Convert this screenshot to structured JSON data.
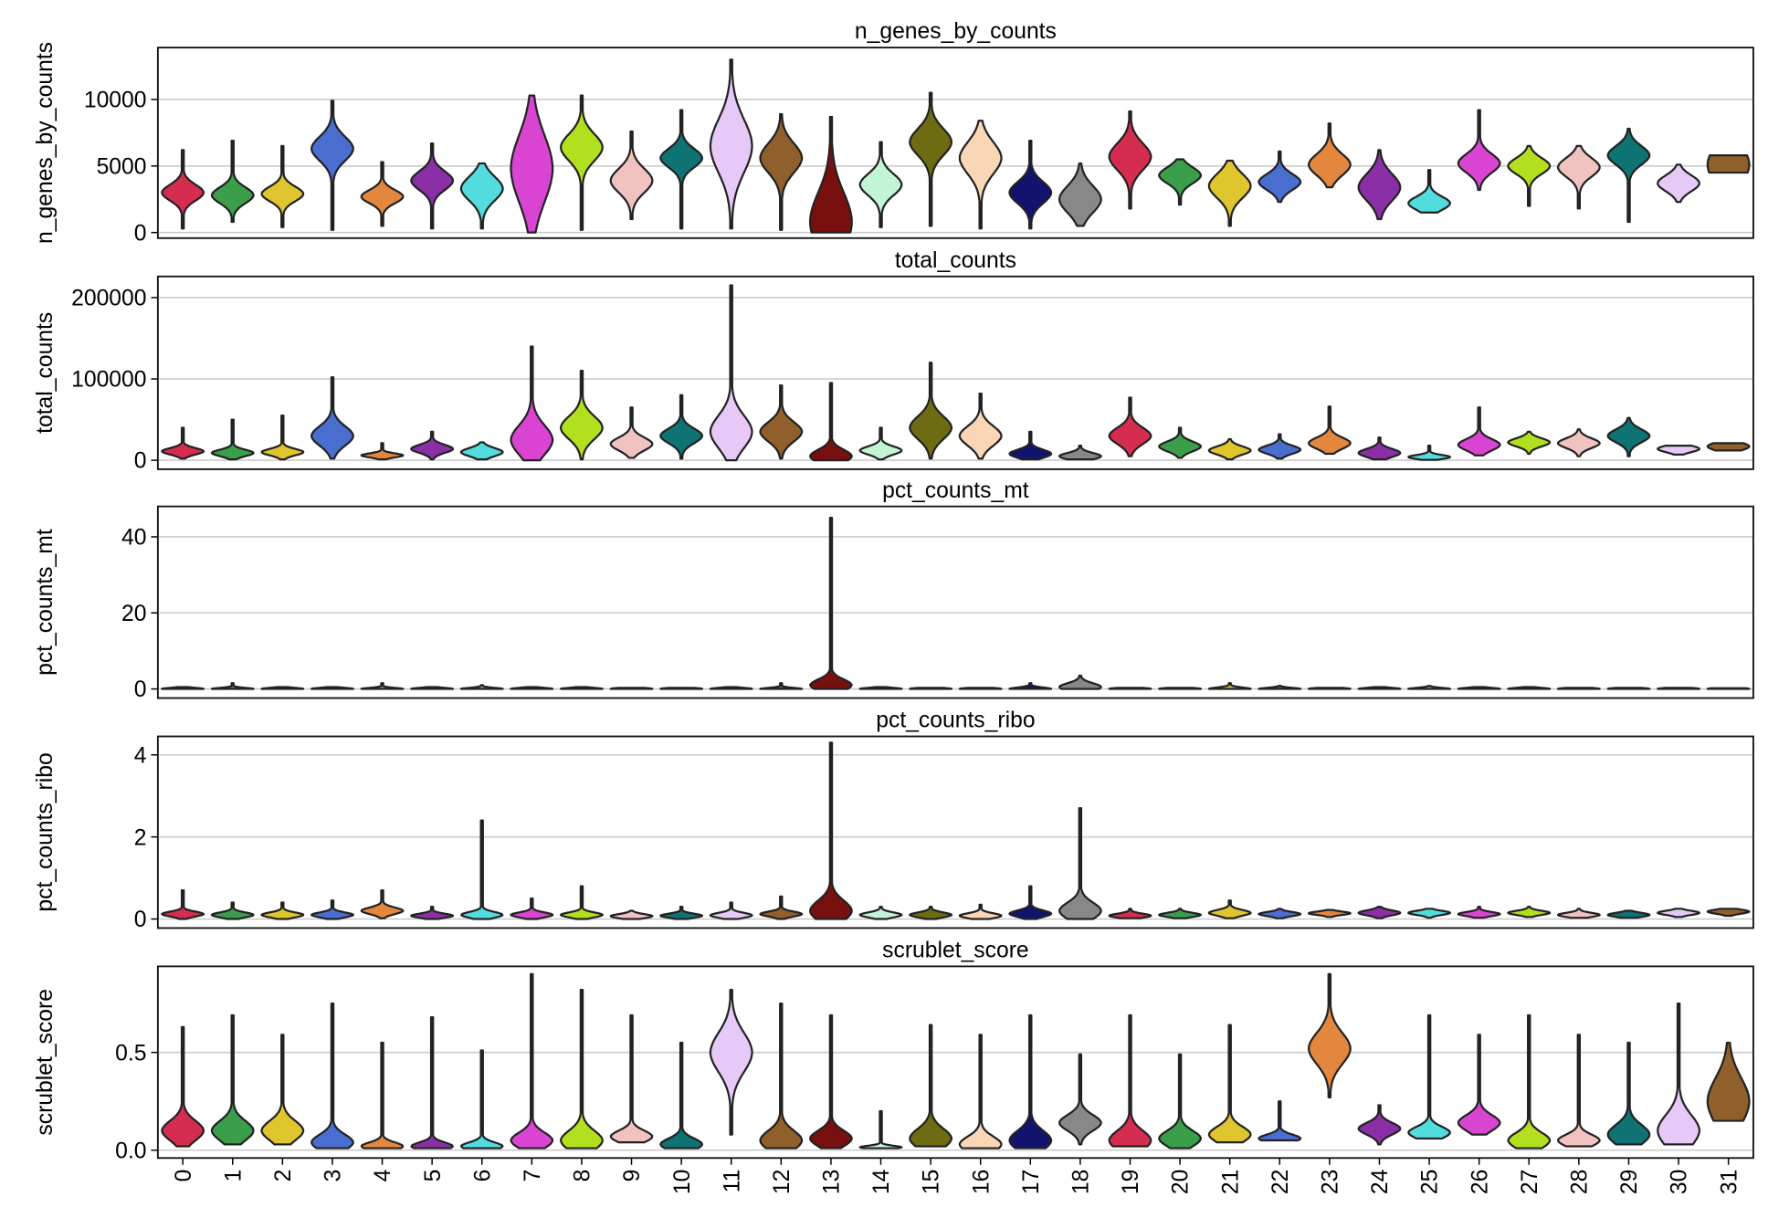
{
  "colors": [
    "#d42d50",
    "#3a9e4a",
    "#e0c62e",
    "#4a6dd0",
    "#e3873f",
    "#8a2fa6",
    "#52dcdd",
    "#d945d2",
    "#b3e01e",
    "#f0c3c0",
    "#0e7372",
    "#e6c9f7",
    "#8f5f2c",
    "#791010",
    "#c2f5d5",
    "#6d6c12",
    "#f8d6b6",
    "#11136e",
    "#888888",
    "#d42d50",
    "#3a9e4a",
    "#e0c62e",
    "#4a6dd0",
    "#e3873f",
    "#8a2fa6",
    "#52dcdd",
    "#d945d2",
    "#b3e01e",
    "#f0c3c0",
    "#0e7372",
    "#e6c9f7",
    "#8f5f2c"
  ],
  "categories": [
    "0",
    "1",
    "2",
    "3",
    "4",
    "5",
    "6",
    "7",
    "8",
    "9",
    "10",
    "11",
    "12",
    "13",
    "14",
    "15",
    "16",
    "17",
    "18",
    "19",
    "20",
    "21",
    "22",
    "23",
    "24",
    "25",
    "26",
    "27",
    "28",
    "29",
    "30",
    "31"
  ],
  "chart_data": [
    {
      "type": "violin",
      "title": "n_genes_by_counts",
      "ylabel": "n_genes_by_counts",
      "grid": true,
      "yticks": [
        0,
        5000,
        10000
      ],
      "ytick_labels": [
        "0",
        "5000",
        "10000"
      ],
      "ylim": [
        -420,
        13900
      ],
      "stats_fields": [
        "min",
        "max",
        "mode",
        "spread"
      ],
      "stats": [
        [
          300,
          6200,
          3000,
          600
        ],
        [
          800,
          6900,
          2800,
          600
        ],
        [
          400,
          6500,
          2900,
          550
        ],
        [
          200,
          9900,
          6300,
          900
        ],
        [
          500,
          5300,
          2700,
          500
        ],
        [
          300,
          6700,
          3900,
          700
        ],
        [
          300,
          5200,
          3300,
          900
        ],
        [
          0,
          10300,
          4800,
          2500
        ],
        [
          200,
          10300,
          6400,
          1000
        ],
        [
          1000,
          7600,
          3900,
          900
        ],
        [
          300,
          9200,
          5600,
          700
        ],
        [
          300,
          13000,
          6500,
          2000
        ],
        [
          200,
          8900,
          5600,
          1100
        ],
        [
          0,
          8700,
          800,
          2200
        ],
        [
          400,
          6800,
          3600,
          800
        ],
        [
          500,
          10500,
          6800,
          1000
        ],
        [
          300,
          8400,
          5600,
          1200
        ],
        [
          300,
          6900,
          3000,
          800
        ],
        [
          500,
          5200,
          2500,
          1000
        ],
        [
          1800,
          9100,
          5700,
          1000
        ],
        [
          2100,
          5500,
          4300,
          600
        ],
        [
          500,
          5400,
          3500,
          900
        ],
        [
          2300,
          6100,
          3800,
          600
        ],
        [
          3400,
          8200,
          5100,
          800
        ],
        [
          1000,
          6200,
          3400,
          1000
        ],
        [
          1500,
          4700,
          2200,
          500
        ],
        [
          3200,
          9200,
          5200,
          700
        ],
        [
          2000,
          6500,
          5000,
          600
        ],
        [
          1800,
          6500,
          4900,
          700
        ],
        [
          800,
          7800,
          5800,
          700
        ],
        [
          2300,
          5100,
          3700,
          600
        ],
        [
          4500,
          5800,
          5100,
          1500
        ]
      ]
    },
    {
      "type": "violin",
      "title": "total_counts",
      "ylabel": "total_counts",
      "grid": true,
      "yticks": [
        0,
        100000,
        200000
      ],
      "ytick_labels": [
        "0",
        "100000",
        "200000"
      ],
      "ylim": [
        -11000,
        226000
      ],
      "stats_fields": [
        "min",
        "max",
        "mode",
        "spread"
      ],
      "stats": [
        [
          2000,
          40000,
          11000,
          4000
        ],
        [
          1000,
          50000,
          9000,
          4000
        ],
        [
          1000,
          55000,
          10000,
          4000
        ],
        [
          2000,
          102000,
          30000,
          12000
        ],
        [
          1000,
          21000,
          6000,
          2500
        ],
        [
          1000,
          35000,
          14000,
          5000
        ],
        [
          1000,
          22000,
          10000,
          5000
        ],
        [
          0,
          140000,
          25000,
          18000
        ],
        [
          1000,
          110000,
          40000,
          14000
        ],
        [
          3000,
          65000,
          20000,
          8000
        ],
        [
          2000,
          80000,
          30000,
          9000
        ],
        [
          0,
          215000,
          35000,
          20000
        ],
        [
          2000,
          92000,
          35000,
          12000
        ],
        [
          0,
          95000,
          5000,
          8000
        ],
        [
          1000,
          40000,
          12000,
          5000
        ],
        [
          2000,
          120000,
          40000,
          14000
        ],
        [
          2000,
          82000,
          30000,
          12000
        ],
        [
          1000,
          35000,
          8000,
          5000
        ],
        [
          1000,
          18000,
          5000,
          4000
        ],
        [
          5000,
          77000,
          30000,
          10000
        ],
        [
          3000,
          40000,
          17000,
          6000
        ],
        [
          1000,
          26000,
          12000,
          5000
        ],
        [
          2000,
          32000,
          13000,
          5000
        ],
        [
          8000,
          66000,
          21000,
          7000
        ],
        [
          1000,
          28000,
          9000,
          5000
        ],
        [
          500,
          18000,
          4000,
          2500
        ],
        [
          6000,
          65000,
          19000,
          7000
        ],
        [
          8000,
          35000,
          22000,
          5000
        ],
        [
          5000,
          38000,
          21000,
          6000
        ],
        [
          5000,
          52000,
          30000,
          8000
        ],
        [
          7000,
          18000,
          14000,
          4000
        ],
        [
          12000,
          21000,
          17000,
          5000
        ]
      ]
    },
    {
      "type": "violin",
      "title": "pct_counts_mt",
      "ylabel": "pct_counts_mt",
      "grid": true,
      "yticks": [
        0,
        20,
        40
      ],
      "ytick_labels": [
        "0",
        "20",
        "40"
      ],
      "ylim": [
        -2.4,
        48
      ],
      "stats_fields": [
        "min",
        "max",
        "mode",
        "spread"
      ],
      "stats": [
        [
          0,
          0.5,
          0,
          0.3
        ],
        [
          0,
          1.5,
          0,
          0.3
        ],
        [
          0,
          0.5,
          0,
          0.3
        ],
        [
          0,
          0.5,
          0,
          0.3
        ],
        [
          0,
          1.5,
          0,
          0.3
        ],
        [
          0,
          0.5,
          0,
          0.3
        ],
        [
          0,
          1,
          0,
          0.3
        ],
        [
          0,
          0.5,
          0,
          0.3
        ],
        [
          0,
          0.5,
          0,
          0.3
        ],
        [
          0,
          0.3,
          0,
          0.3
        ],
        [
          0,
          0.3,
          0,
          0.3
        ],
        [
          0,
          0.5,
          0,
          0.3
        ],
        [
          0,
          1.5,
          0,
          0.3
        ],
        [
          0,
          45,
          1,
          1.5
        ],
        [
          0,
          0.5,
          0,
          0.3
        ],
        [
          0,
          0.3,
          0,
          0.3
        ],
        [
          0,
          0.3,
          0,
          0.3
        ],
        [
          0,
          1.5,
          0,
          0.4
        ],
        [
          0,
          3.5,
          0.5,
          1
        ],
        [
          0,
          0.3,
          0,
          0.3
        ],
        [
          0,
          0.3,
          0,
          0.3
        ],
        [
          0,
          1.5,
          0,
          0.4
        ],
        [
          0,
          0.8,
          0,
          0.3
        ],
        [
          0,
          0.3,
          0,
          0.3
        ],
        [
          0,
          0.5,
          0,
          0.3
        ],
        [
          0,
          0.8,
          0,
          0.3
        ],
        [
          0,
          0.5,
          0,
          0.3
        ],
        [
          0,
          0.5,
          0,
          0.3
        ],
        [
          0,
          0.3,
          0,
          0.3
        ],
        [
          0,
          0.3,
          0,
          0.3
        ],
        [
          0,
          0.3,
          0,
          0.3
        ],
        [
          0,
          0.2,
          0,
          0.3
        ]
      ]
    },
    {
      "type": "violin",
      "title": "pct_counts_ribo",
      "ylabel": "pct_counts_ribo",
      "grid": true,
      "yticks": [
        0,
        2,
        4
      ],
      "ytick_labels": [
        "0",
        "2",
        "4"
      ],
      "ylim": [
        -0.22,
        4.45
      ],
      "stats_fields": [
        "min",
        "max",
        "mode",
        "spread"
      ],
      "stats": [
        [
          0,
          0.7,
          0.12,
          0.06
        ],
        [
          0,
          0.4,
          0.1,
          0.06
        ],
        [
          0,
          0.4,
          0.1,
          0.06
        ],
        [
          0,
          0.45,
          0.1,
          0.06
        ],
        [
          0.02,
          0.7,
          0.2,
          0.08
        ],
        [
          0,
          0.3,
          0.08,
          0.05
        ],
        [
          0,
          2.4,
          0.1,
          0.07
        ],
        [
          0,
          0.5,
          0.1,
          0.06
        ],
        [
          0,
          0.8,
          0.1,
          0.06
        ],
        [
          0,
          0.2,
          0.07,
          0.05
        ],
        [
          0,
          0.3,
          0.08,
          0.05
        ],
        [
          0,
          0.4,
          0.09,
          0.06
        ],
        [
          0,
          0.55,
          0.12,
          0.06
        ],
        [
          0,
          4.3,
          0.2,
          0.25
        ],
        [
          0,
          0.3,
          0.1,
          0.06
        ],
        [
          0,
          0.3,
          0.1,
          0.06
        ],
        [
          0,
          0.35,
          0.08,
          0.06
        ],
        [
          0,
          0.8,
          0.13,
          0.08
        ],
        [
          0,
          2.7,
          0.2,
          0.2
        ],
        [
          0.02,
          0.25,
          0.08,
          0.05
        ],
        [
          0.02,
          0.25,
          0.1,
          0.05
        ],
        [
          0.02,
          0.45,
          0.15,
          0.07
        ],
        [
          0.02,
          0.25,
          0.12,
          0.05
        ],
        [
          0.05,
          0.22,
          0.14,
          0.04
        ],
        [
          0.02,
          0.3,
          0.15,
          0.06
        ],
        [
          0.03,
          0.25,
          0.15,
          0.05
        ],
        [
          0.03,
          0.3,
          0.12,
          0.05
        ],
        [
          0.05,
          0.3,
          0.15,
          0.05
        ],
        [
          0.03,
          0.25,
          0.1,
          0.05
        ],
        [
          0.03,
          0.2,
          0.1,
          0.05
        ],
        [
          0.05,
          0.25,
          0.15,
          0.05
        ],
        [
          0.08,
          0.25,
          0.18,
          0.05
        ]
      ]
    },
    {
      "type": "violin",
      "title": "scrublet_score",
      "ylabel": "scrublet_score",
      "grid": true,
      "yticks": [
        0,
        0.5
      ],
      "ytick_labels": [
        "0.0",
        "0.5"
      ],
      "ylim": [
        -0.04,
        0.94
      ],
      "stats_fields": [
        "min",
        "max",
        "mode",
        "spread"
      ],
      "stats": [
        [
          0.02,
          0.63,
          0.1,
          0.05
        ],
        [
          0.03,
          0.69,
          0.1,
          0.05
        ],
        [
          0.03,
          0.59,
          0.1,
          0.05
        ],
        [
          0.01,
          0.75,
          0.04,
          0.04
        ],
        [
          0.01,
          0.55,
          0.02,
          0.02
        ],
        [
          0.01,
          0.68,
          0.02,
          0.02
        ],
        [
          0.01,
          0.51,
          0.02,
          0.02
        ],
        [
          0.01,
          0.9,
          0.05,
          0.04
        ],
        [
          0.01,
          0.82,
          0.05,
          0.05
        ],
        [
          0.04,
          0.69,
          0.07,
          0.03
        ],
        [
          0.01,
          0.55,
          0.03,
          0.03
        ],
        [
          0.08,
          0.82,
          0.5,
          0.1
        ],
        [
          0.01,
          0.75,
          0.05,
          0.05
        ],
        [
          0.01,
          0.69,
          0.06,
          0.04
        ],
        [
          0.01,
          0.2,
          0.015,
          0.008
        ],
        [
          0.02,
          0.64,
          0.06,
          0.05
        ],
        [
          0.01,
          0.59,
          0.03,
          0.04
        ],
        [
          0.01,
          0.69,
          0.05,
          0.05
        ],
        [
          0.03,
          0.49,
          0.14,
          0.04
        ],
        [
          0.02,
          0.69,
          0.05,
          0.05
        ],
        [
          0.01,
          0.49,
          0.06,
          0.04
        ],
        [
          0.04,
          0.64,
          0.08,
          0.04
        ],
        [
          0.05,
          0.25,
          0.06,
          0.02
        ],
        [
          0.27,
          0.9,
          0.52,
          0.08
        ],
        [
          0.03,
          0.23,
          0.11,
          0.03
        ],
        [
          0.06,
          0.69,
          0.09,
          0.03
        ],
        [
          0.08,
          0.59,
          0.14,
          0.04
        ],
        [
          0.01,
          0.69,
          0.05,
          0.04
        ],
        [
          0.02,
          0.59,
          0.05,
          0.03
        ],
        [
          0.03,
          0.55,
          0.08,
          0.05
        ],
        [
          0.03,
          0.75,
          0.1,
          0.08
        ],
        [
          0.15,
          0.55,
          0.25,
          0.12
        ]
      ]
    }
  ]
}
